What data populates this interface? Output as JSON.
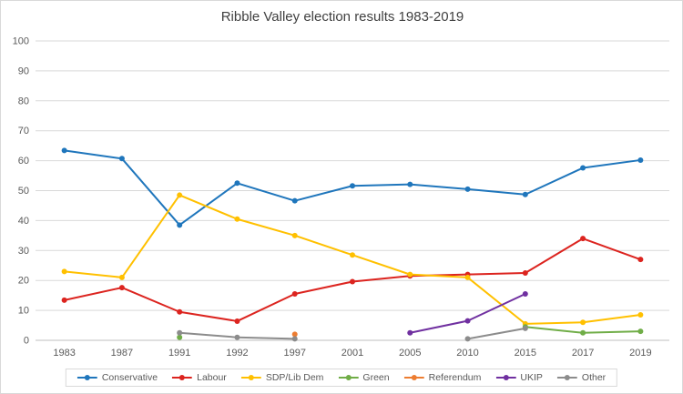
{
  "chart_data": {
    "type": "line",
    "title": "Ribble Valley election results 1983-2019",
    "xlabel": "",
    "ylabel": "",
    "categories": [
      "1983",
      "1987",
      "1991",
      "1992",
      "1997",
      "2001",
      "2005",
      "2010",
      "2015",
      "2017",
      "2019"
    ],
    "ylim": [
      0,
      100
    ],
    "yticks": [
      0,
      10,
      20,
      30,
      40,
      50,
      60,
      70,
      80,
      90,
      100
    ],
    "grid": true,
    "legend_position": "bottom",
    "colors": {
      "grid": "#d9d9d9",
      "axis": "#bfbfbf",
      "tick_label": "#595959",
      "title": "#404040"
    },
    "series": [
      {
        "name": "Conservative",
        "color": "#1f76bc",
        "values": [
          63.4,
          60.7,
          38.5,
          52.5,
          46.6,
          51.6,
          52.1,
          50.5,
          48.7,
          57.6,
          60.2
        ]
      },
      {
        "name": "Labour",
        "color": "#dc241f",
        "values": [
          13.4,
          17.6,
          9.5,
          6.4,
          15.5,
          19.6,
          21.5,
          22.0,
          22.5,
          34.0,
          27.0
        ]
      },
      {
        "name": "SDP/Lib Dem",
        "color": "#ffc000",
        "values": [
          23.0,
          21.0,
          48.5,
          40.5,
          35.0,
          28.5,
          22.0,
          21.0,
          5.5,
          6.0,
          8.5
        ]
      },
      {
        "name": "Green",
        "color": "#70ad47",
        "values": [
          null,
          null,
          1.0,
          null,
          null,
          null,
          null,
          null,
          4.5,
          2.5,
          3.0
        ]
      },
      {
        "name": "Referendum",
        "color": "#ed7d31",
        "values": [
          null,
          null,
          null,
          null,
          2.0,
          null,
          null,
          null,
          null,
          null,
          null
        ]
      },
      {
        "name": "UKIP",
        "color": "#7030a0",
        "values": [
          null,
          null,
          null,
          null,
          null,
          null,
          2.5,
          6.5,
          15.5,
          null,
          null
        ]
      },
      {
        "name": "Other",
        "color": "#8c8c8c",
        "values": [
          null,
          null,
          2.5,
          1.0,
          0.5,
          null,
          null,
          0.5,
          4.0,
          null,
          null
        ]
      }
    ]
  }
}
